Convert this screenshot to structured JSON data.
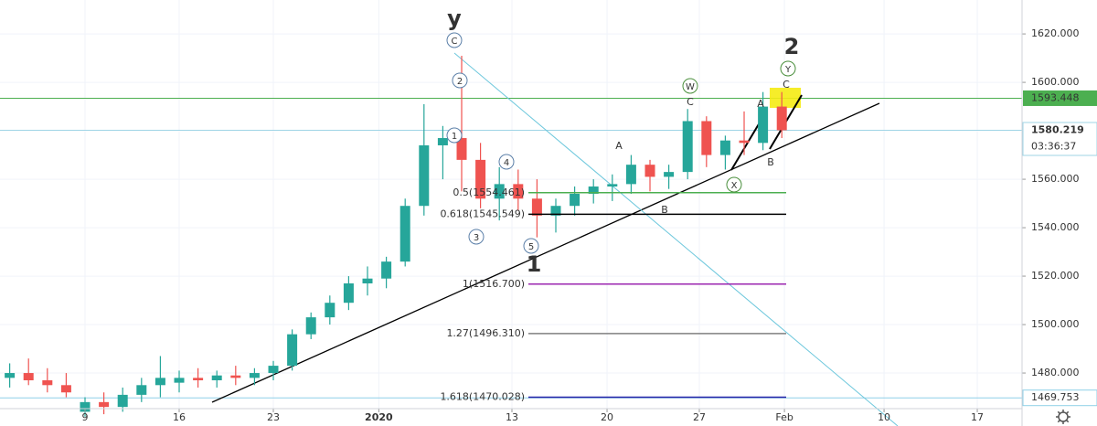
{
  "chart_data": {
    "type": "candlestick",
    "x": [
      -4,
      -3,
      -2,
      -1,
      0,
      1,
      2,
      3,
      4,
      5,
      6,
      7,
      8,
      9,
      10,
      11,
      12,
      13,
      14,
      15,
      16,
      17,
      18,
      19,
      20,
      21,
      22,
      23,
      24,
      25,
      26,
      27,
      28,
      29,
      30,
      31,
      32,
      33,
      34,
      35,
      36,
      37
    ],
    "open": [
      1478,
      1480,
      1477,
      1475,
      1464,
      1468,
      1466,
      1471,
      1475,
      1476,
      1478,
      1477,
      1479,
      1478,
      1480,
      1483,
      1496,
      1503,
      1509,
      1517,
      1519,
      1526,
      1549,
      1574,
      1577,
      1568,
      1552,
      1558,
      1552,
      1545,
      1549,
      1554,
      1557,
      1558,
      1566,
      1561,
      1563,
      1584,
      1570,
      1576,
      1575,
      1590
    ],
    "high": [
      1484,
      1486,
      1482,
      1480,
      1470,
      1472,
      1474,
      1478,
      1487,
      1481,
      1482,
      1481,
      1483,
      1482,
      1485,
      1498,
      1505,
      1512,
      1520,
      1524,
      1528,
      1552,
      1591,
      1582,
      1611,
      1575,
      1565,
      1564,
      1560,
      1552,
      1557,
      1560,
      1562,
      1570,
      1568,
      1566,
      1589,
      1586,
      1578,
      1588,
      1596,
      1596
    ],
    "low": [
      1474,
      1475,
      1472,
      1470,
      1462,
      1463,
      1464,
      1468,
      1470,
      1472,
      1474,
      1474,
      1475,
      1475,
      1477,
      1481,
      1494,
      1500,
      1506,
      1512,
      1515,
      1524,
      1545,
      1560,
      1555,
      1548,
      1543,
      1547,
      1536,
      1538,
      1545,
      1550,
      1551,
      1554,
      1555,
      1556,
      1560,
      1565,
      1564,
      1570,
      1572,
      1577
    ],
    "close": [
      1480,
      1477,
      1475,
      1472,
      1468,
      1466,
      1471,
      1475,
      1478,
      1478,
      1477,
      1479,
      1478,
      1480,
      1483,
      1496,
      1503,
      1509,
      1517,
      1519,
      1526,
      1549,
      1574,
      1577,
      1568,
      1552,
      1558,
      1552,
      1545,
      1549,
      1554,
      1557,
      1558,
      1566,
      1561,
      1563,
      1584,
      1570,
      1576,
      1575,
      1590,
      1580.219
    ],
    "up_color": "#26a69a",
    "down_color": "#ef5350",
    "xlim": [
      -4.515,
      49.757
    ],
    "xticks": [
      {
        "value": 0,
        "label": "9"
      },
      {
        "value": 5,
        "label": "16"
      },
      {
        "value": 10,
        "label": "23"
      },
      {
        "value": 15.6,
        "label": "2020"
      },
      {
        "value": 22.67,
        "label": "13"
      },
      {
        "value": 27.72,
        "label": "20"
      },
      {
        "value": 32.62,
        "label": "27"
      },
      {
        "value": 37.14,
        "label": "Feb"
      },
      {
        "value": 42.43,
        "label": "10"
      },
      {
        "value": 47.38,
        "label": "17"
      }
    ],
    "ylim": [
      1465.3,
      1634.0
    ],
    "yticks": [
      {
        "value": 1480,
        "label": "1480.000"
      },
      {
        "value": 1500,
        "label": "1500.000"
      },
      {
        "value": 1520,
        "label": "1520.000"
      },
      {
        "value": 1540,
        "label": "1540.000"
      },
      {
        "value": 1560,
        "label": "1560.000"
      },
      {
        "value": 1600,
        "label": "1600.000"
      },
      {
        "value": 1620,
        "label": "1620.000"
      }
    ],
    "grid": true,
    "price_lines": [
      {
        "value": 1593.448,
        "color": "#4caf50"
      },
      {
        "value": 1580.219,
        "color": "#9fd4e6",
        "countdown": "03:36:37"
      },
      {
        "value": 1469.753,
        "color": "#8fd0e8"
      }
    ],
    "fib_levels": [
      {
        "label": "0.5(1554.461)",
        "value": 1554.461,
        "color": "#4caf50"
      },
      {
        "label": "0.618(1545.549)",
        "value": 1545.549,
        "color": "#000000"
      },
      {
        "label": "1(1516.700)",
        "value": 1516.7,
        "color": "#9c27b0"
      },
      {
        "label": "1.27(1496.310)",
        "value": 1496.31,
        "color": "#808080"
      },
      {
        "label": "1.618(1470.028)",
        "value": 1470.028,
        "color": "#2424a8"
      }
    ],
    "annotations": [
      "y",
      "C",
      "2",
      "1",
      "3",
      "4",
      "5",
      "1",
      "A",
      "B",
      "W",
      "C",
      "A",
      "B",
      "X",
      "2",
      "Y",
      "C"
    ]
  }
}
